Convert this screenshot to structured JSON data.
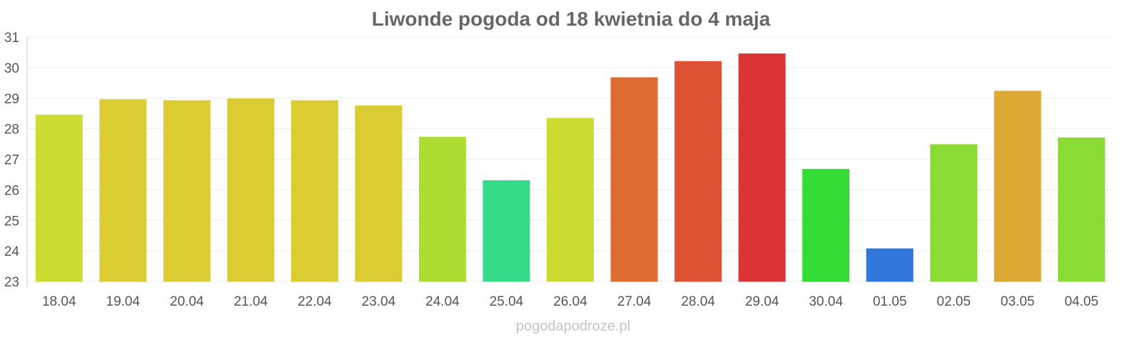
{
  "chart_data": {
    "type": "bar",
    "title": "Liwonde pogoda od 18 kwietnia do 4 maja",
    "xlabel": "",
    "ylabel": "",
    "ylim": [
      23,
      31
    ],
    "yticks": [
      23,
      24,
      25,
      26,
      27,
      28,
      29,
      30,
      31
    ],
    "grid": true,
    "legend": "none",
    "categories": [
      "18.04",
      "19.04",
      "20.04",
      "21.04",
      "22.04",
      "23.04",
      "24.04",
      "25.04",
      "26.04",
      "27.04",
      "28.04",
      "29.04",
      "30.04",
      "01.05",
      "02.05",
      "03.05",
      "04.05"
    ],
    "values": [
      28.45,
      28.95,
      28.92,
      28.98,
      28.92,
      28.75,
      27.72,
      26.3,
      28.34,
      29.67,
      30.2,
      30.45,
      26.67,
      24.07,
      27.48,
      29.23,
      27.7
    ],
    "colors": [
      "#cddc32",
      "#dbcc34",
      "#dbcc34",
      "#dbcc34",
      "#dbcc34",
      "#dbcc34",
      "#addd32",
      "#36db8a",
      "#cddc32",
      "#de6c32",
      "#de5234",
      "#dc3434",
      "#33db34",
      "#3477dc",
      "#8adc34",
      "#dda834",
      "#8adc34"
    ]
  },
  "watermark": "pogodapodroze.pl",
  "colors": {
    "title": "#666666",
    "tick_text": "#555555",
    "grid": "#eeeeee",
    "axis": "#cccccc",
    "watermark": "#c4c4c4"
  }
}
